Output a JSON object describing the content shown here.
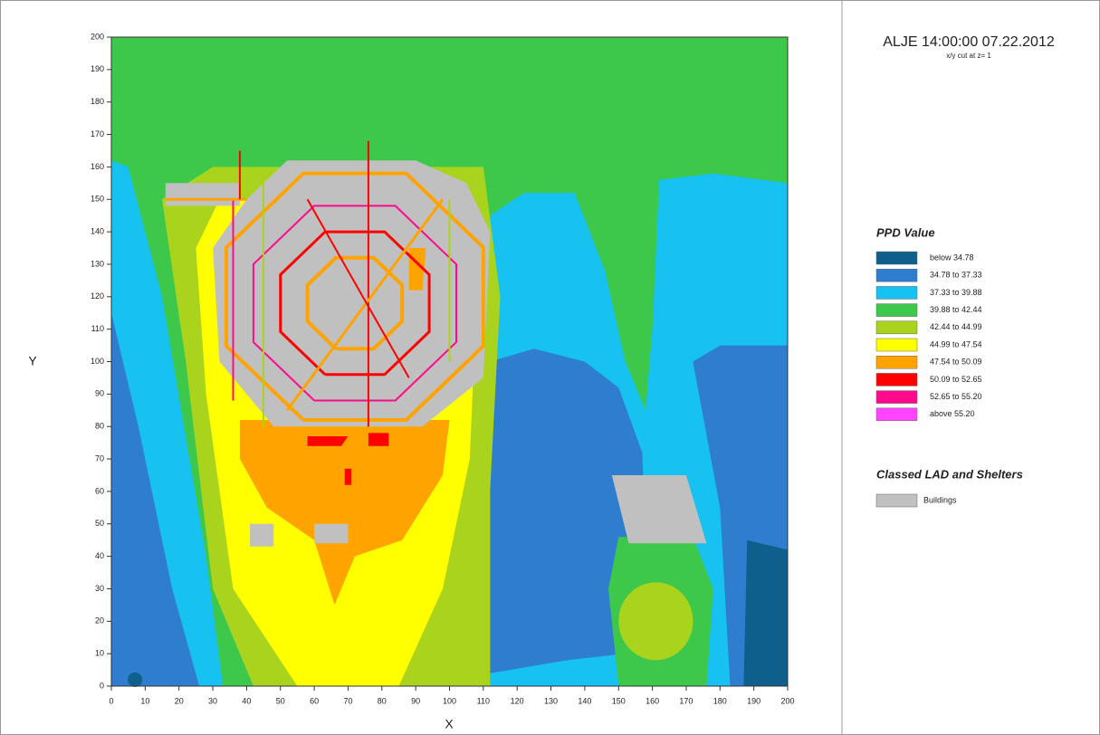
{
  "chart_data": {
    "type": "heatmap",
    "title": "ALJE 14:00:00 07.22.2012",
    "subtitle": "x/y cut at z= 1",
    "x_label": "X",
    "y_label": "Y",
    "xlim": [
      0,
      200
    ],
    "ylim": [
      0,
      200
    ],
    "xticks": [
      0,
      10,
      20,
      30,
      40,
      50,
      60,
      70,
      80,
      90,
      100,
      110,
      120,
      130,
      140,
      150,
      160,
      170,
      180,
      190,
      200
    ],
    "yticks": [
      0,
      10,
      20,
      30,
      40,
      50,
      60,
      70,
      80,
      90,
      100,
      110,
      120,
      130,
      140,
      150,
      160,
      170,
      180,
      190,
      200
    ],
    "legend": {
      "title": "PPD Value",
      "classes": [
        {
          "label": "below 34.78",
          "color": "#0f5f8c"
        },
        {
          "label": "34.78 to 37.33",
          "color": "#2f7dcf"
        },
        {
          "label": "37.33 to 39.88",
          "color": "#17c1f0"
        },
        {
          "label": "39.88 to 42.44",
          "color": "#3dc84b"
        },
        {
          "label": "42.44 to 44.99",
          "color": "#a9d31d"
        },
        {
          "label": "44.99 to 47.54",
          "color": "#ffff00"
        },
        {
          "label": "47.54 to 50.09",
          "color": "#ffa300"
        },
        {
          "label": "50.09 to 52.65",
          "color": "#ff0000"
        },
        {
          "label": "52.65 to 55.20",
          "color": "#ff0a8c"
        },
        {
          "label": "above 55.20",
          "color": "#ff44ff"
        }
      ]
    },
    "shelter_legend": {
      "title": "Classed LAD and Shelters",
      "items": [
        {
          "label": "Buildings",
          "color": "#c0c0c0"
        }
      ]
    }
  }
}
